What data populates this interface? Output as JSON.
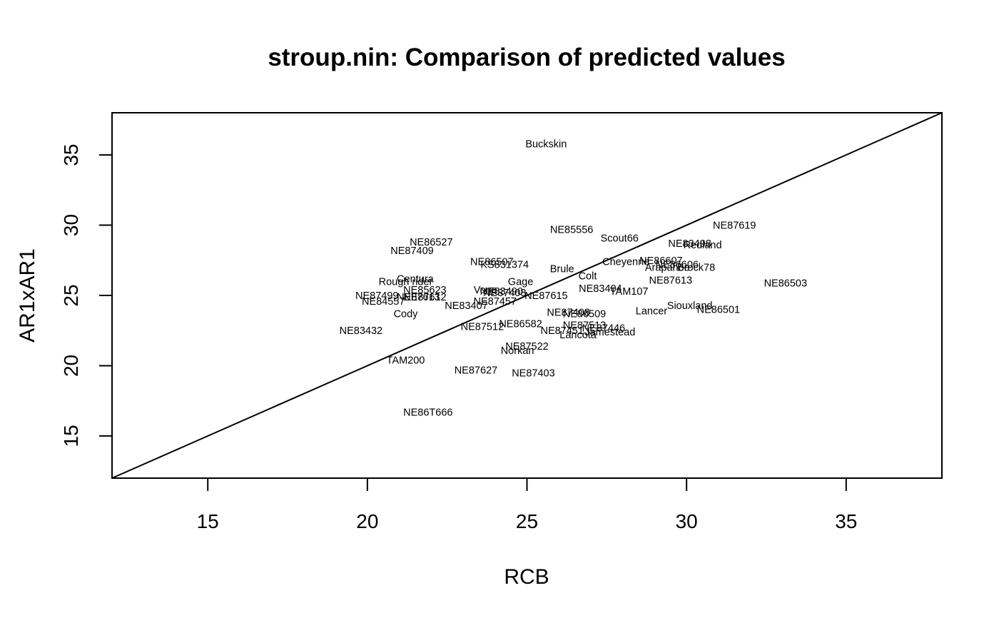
{
  "chart_data": {
    "type": "scatter",
    "title": "stroup.nin: Comparison of predicted values",
    "xlabel": "RCB",
    "ylabel": "AR1xAR1",
    "xlim": [
      12,
      38
    ],
    "ylim": [
      12,
      38
    ],
    "xticks": [
      "15",
      "20",
      "25",
      "30",
      "35"
    ],
    "yticks": [
      "15",
      "20",
      "25",
      "30",
      "35"
    ],
    "reference_line": "y = x",
    "grid": false,
    "points": [
      {
        "label": "Buckskin",
        "x": 25.6,
        "y": 35.8
      },
      {
        "label": "NE87619",
        "x": 31.5,
        "y": 30.0
      },
      {
        "label": "NE85556",
        "x": 26.4,
        "y": 29.7
      },
      {
        "label": "Scout66",
        "x": 27.9,
        "y": 29.1
      },
      {
        "label": "NE86527",
        "x": 22.0,
        "y": 28.8
      },
      {
        "label": "NE83498",
        "x": 30.1,
        "y": 28.7
      },
      {
        "label": "Redland",
        "x": 30.5,
        "y": 28.6
      },
      {
        "label": "NE87409",
        "x": 21.4,
        "y": 28.2
      },
      {
        "label": "NE86507",
        "x": 23.9,
        "y": 27.4
      },
      {
        "label": "NE86607",
        "x": 29.2,
        "y": 27.5
      },
      {
        "label": "KS831374",
        "x": 24.3,
        "y": 27.2
      },
      {
        "label": "Cheyenne",
        "x": 28.1,
        "y": 27.4
      },
      {
        "label": "NE86606",
        "x": 29.7,
        "y": 27.2
      },
      {
        "label": "Arapahoe",
        "x": 29.4,
        "y": 27.0
      },
      {
        "label": "Brock78",
        "x": 30.3,
        "y": 27.0
      },
      {
        "label": "Brule",
        "x": 26.1,
        "y": 26.9
      },
      {
        "label": "Colt",
        "x": 26.9,
        "y": 26.4
      },
      {
        "label": "NE86503",
        "x": 33.1,
        "y": 25.9
      },
      {
        "label": "NE87613",
        "x": 29.5,
        "y": 26.1
      },
      {
        "label": "Centura",
        "x": 21.5,
        "y": 26.2
      },
      {
        "label": "Rough rider",
        "x": 21.2,
        "y": 26.0
      },
      {
        "label": "Gage",
        "x": 24.8,
        "y": 26.0
      },
      {
        "label": "NE83404",
        "x": 27.3,
        "y": 25.5
      },
      {
        "label": "NE85623",
        "x": 21.8,
        "y": 25.4
      },
      {
        "label": "Vona",
        "x": 23.7,
        "y": 25.4
      },
      {
        "label": "NE83490",
        "x": 24.2,
        "y": 25.3
      },
      {
        "label": "TAM107",
        "x": 28.2,
        "y": 25.3
      },
      {
        "label": "NE87408",
        "x": 24.3,
        "y": 25.2
      },
      {
        "label": "NE87612",
        "x": 21.8,
        "y": 24.9
      },
      {
        "label": "NE87499",
        "x": 20.3,
        "y": 25.0
      },
      {
        "label": "NE87613",
        "x": 21.6,
        "y": 24.9
      },
      {
        "label": "NE87615",
        "x": 25.6,
        "y": 25.0
      },
      {
        "label": "NE87457",
        "x": 24.0,
        "y": 24.6
      },
      {
        "label": "NE84557",
        "x": 20.5,
        "y": 24.6
      },
      {
        "label": "NE83407",
        "x": 23.1,
        "y": 24.3
      },
      {
        "label": "Siouxland",
        "x": 30.1,
        "y": 24.3
      },
      {
        "label": "NE86501",
        "x": 31.0,
        "y": 24.0
      },
      {
        "label": "Lancer",
        "x": 28.9,
        "y": 23.9
      },
      {
        "label": "NE87408",
        "x": 26.3,
        "y": 23.8
      },
      {
        "label": "NE86509",
        "x": 26.8,
        "y": 23.7
      },
      {
        "label": "Cody",
        "x": 21.2,
        "y": 23.7
      },
      {
        "label": "NE86582",
        "x": 24.8,
        "y": 23.0
      },
      {
        "label": "NE87513",
        "x": 26.8,
        "y": 22.9
      },
      {
        "label": "NE87512",
        "x": 23.6,
        "y": 22.8
      },
      {
        "label": "NE87446",
        "x": 27.4,
        "y": 22.7
      },
      {
        "label": "NE83432",
        "x": 19.8,
        "y": 22.5
      },
      {
        "label": "NE87451",
        "x": 26.1,
        "y": 22.5
      },
      {
        "label": "Jamestead",
        "x": 27.6,
        "y": 22.4
      },
      {
        "label": "Lancota",
        "x": 26.6,
        "y": 22.2
      },
      {
        "label": "NE87522",
        "x": 25.0,
        "y": 21.4
      },
      {
        "label": "Norkan",
        "x": 24.7,
        "y": 21.1
      },
      {
        "label": "TAM200",
        "x": 21.2,
        "y": 20.4
      },
      {
        "label": "NE87627",
        "x": 23.4,
        "y": 19.7
      },
      {
        "label": "NE87403",
        "x": 25.2,
        "y": 19.5
      },
      {
        "label": "NE86T666",
        "x": 21.9,
        "y": 16.7
      }
    ]
  }
}
